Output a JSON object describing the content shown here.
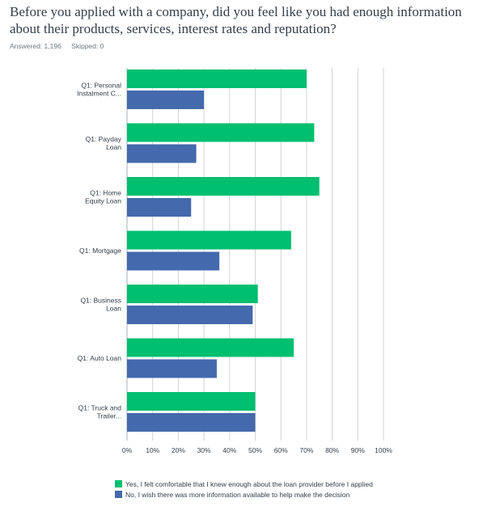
{
  "question": "Before you applied with a company, did you feel like you had enough information about their products, services, interest rates and reputation?",
  "stats": {
    "answered": "Answered: 1,196",
    "skipped": "Skipped: 0"
  },
  "colors": {
    "yes": "#00bf6f",
    "no": "#4469ac",
    "grid": "#d3d3d3",
    "text": "#333e48"
  },
  "chart_data": {
    "type": "bar",
    "orientation": "horizontal",
    "categories": [
      [
        "Q1: Personal",
        "Instalment C..."
      ],
      [
        "Q1: Payday",
        "Loan"
      ],
      [
        "Q1: Home",
        "Equity Loan"
      ],
      [
        "Q1: Mortgage"
      ],
      [
        "Q1: Business",
        "Loan"
      ],
      [
        "Q1: Auto Loan"
      ],
      [
        "Q1: Truck and",
        "Trailer..."
      ]
    ],
    "series": [
      {
        "name": "Yes, I felt comfortable that I knew enough about the loan provider before I applied",
        "values": [
          70,
          73,
          75,
          64,
          51,
          65,
          50
        ]
      },
      {
        "name": "No, I wish there was more information available to help make the decision",
        "values": [
          30,
          27,
          25,
          36,
          49,
          35,
          50
        ]
      }
    ],
    "xlim": [
      0,
      100
    ],
    "xticks": [
      "0%",
      "10%",
      "20%",
      "30%",
      "40%",
      "50%",
      "60%",
      "70%",
      "80%",
      "90%",
      "100%"
    ],
    "grid": true,
    "legend": "bottom"
  }
}
